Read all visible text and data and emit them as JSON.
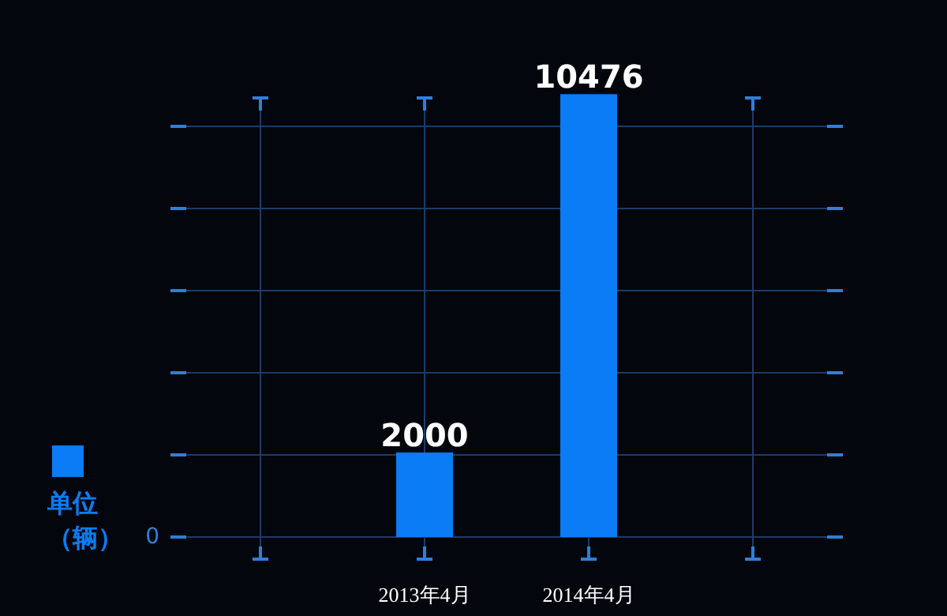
{
  "chart_data": {
    "type": "bar",
    "categories": [
      null,
      "2013年4月",
      "2014年4月",
      null
    ],
    "series": [
      {
        "name": "单位（辆）",
        "color": "#0a7cf5",
        "values": [
          null,
          2000,
          10476,
          null
        ]
      }
    ],
    "annotations": [
      "0"
    ],
    "data_labels": true,
    "grid": true,
    "legend": "left"
  }
}
